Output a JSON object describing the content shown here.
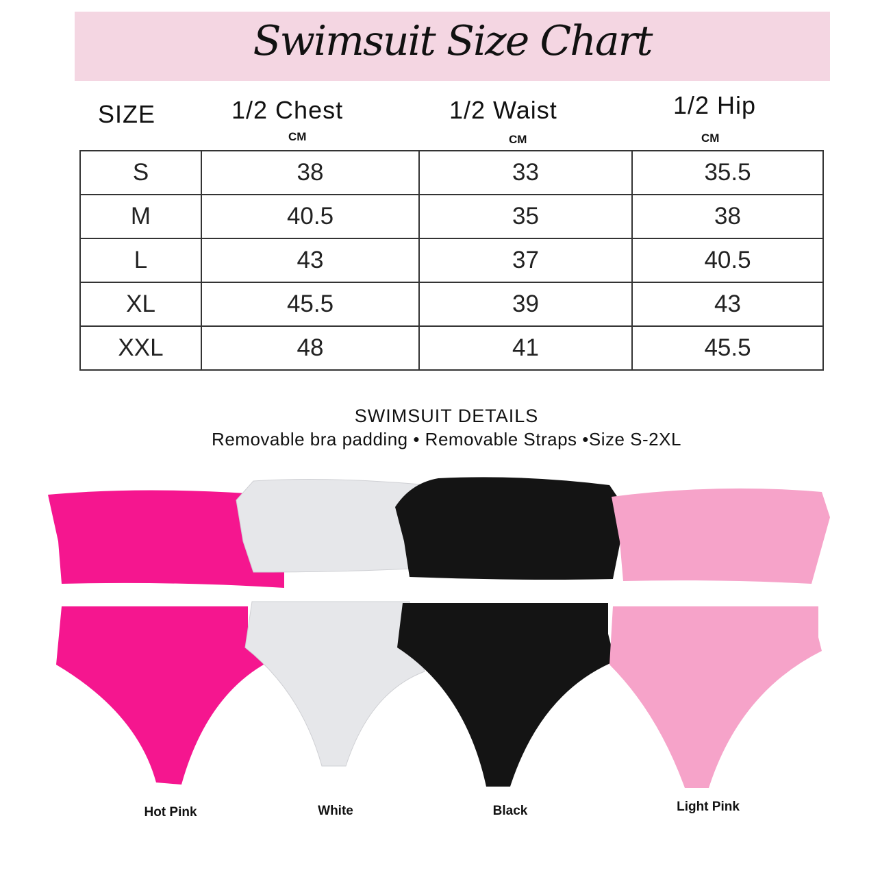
{
  "title": "Swimsuit Size Chart",
  "table": {
    "headers": [
      "SIZE",
      "1/2 Chest",
      "1/2 Waist",
      "1/2 Hip"
    ],
    "units": [
      "",
      "CM",
      "CM",
      "CM"
    ],
    "rows": [
      [
        "S",
        "38",
        "33",
        "35.5"
      ],
      [
        "M",
        "40.5",
        "35",
        "38"
      ],
      [
        "L",
        "43",
        "37",
        "40.5"
      ],
      [
        "XL",
        "45.5",
        "39",
        "43"
      ],
      [
        "XXL",
        "48",
        "41",
        "45.5"
      ]
    ]
  },
  "details": {
    "heading": "SWIMSUIT DETAILS",
    "features": "Removable bra padding • Removable Straps •Size S-2XL"
  },
  "colors": [
    {
      "name": "Hot Pink",
      "hex": "#f5168f"
    },
    {
      "name": "White",
      "hex": "#e6e7ea"
    },
    {
      "name": "Black",
      "hex": "#141414"
    },
    {
      "name": "Light Pink",
      "hex": "#f6a3c9"
    }
  ],
  "banner_color": "#f4d6e2"
}
